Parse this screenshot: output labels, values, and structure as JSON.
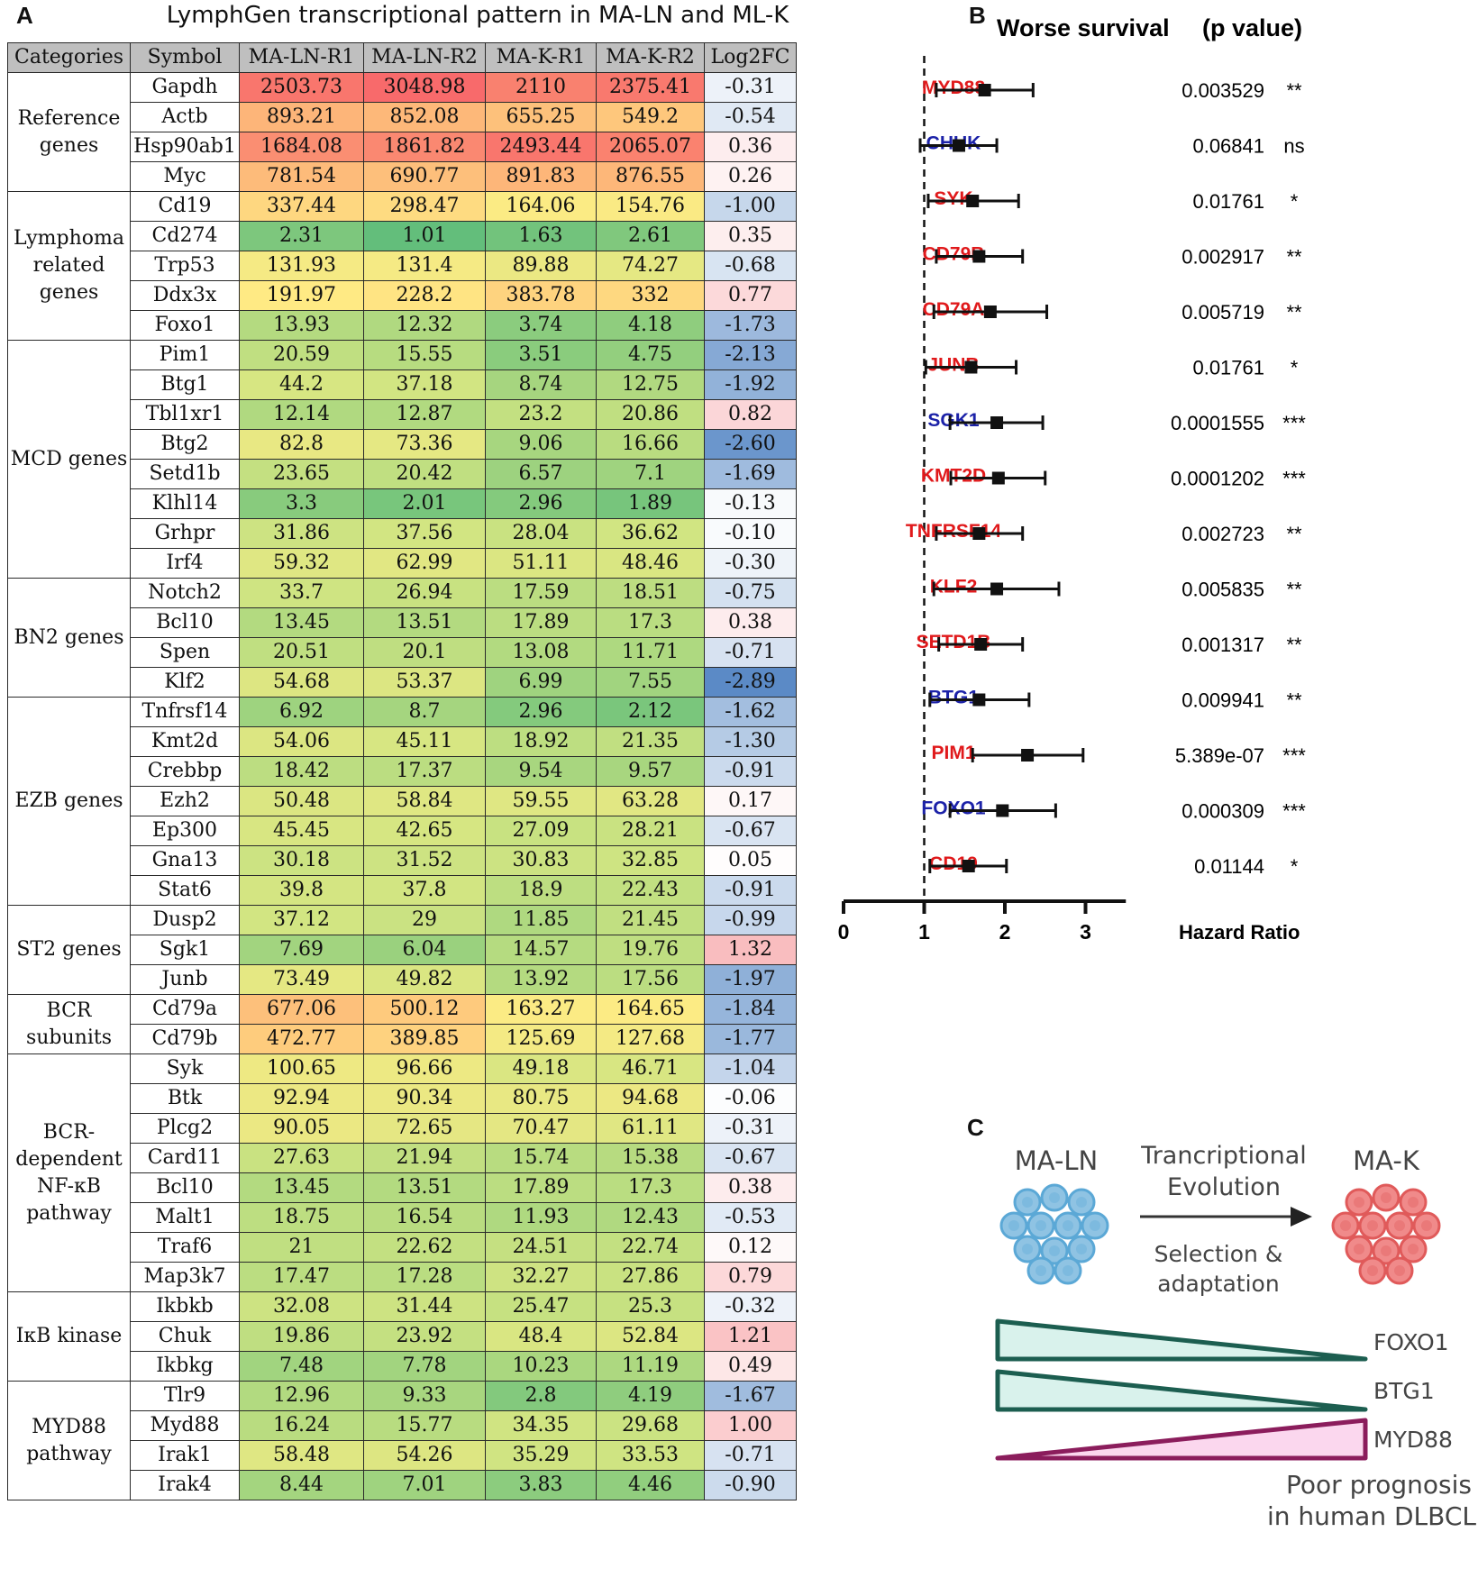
{
  "panel_a": {
    "letter": "A",
    "title": "LymphGen transcriptional pattern in MA-LN and ML-K",
    "headers": [
      "Categories",
      "Symbol",
      "MA-LN-R1",
      "MA-LN-R2",
      "MA-K-R1",
      "MA-K-R2",
      "Log2FC"
    ],
    "groups": [
      {
        "category": "Reference genes",
        "rows": [
          {
            "symbol": "Gapdh",
            "values": [
              "2503.73",
              "3048.98",
              "2110",
              "2375.41"
            ],
            "fc": "-0.31"
          },
          {
            "symbol": "Actb",
            "values": [
              "893.21",
              "852.08",
              "655.25",
              "549.2"
            ],
            "fc": "-0.54"
          },
          {
            "symbol": "Hsp90ab1",
            "values": [
              "1684.08",
              "1861.82",
              "2493.44",
              "2065.07"
            ],
            "fc": "0.36"
          },
          {
            "symbol": "Myc",
            "values": [
              "781.54",
              "690.77",
              "891.83",
              "876.55"
            ],
            "fc": "0.26"
          }
        ]
      },
      {
        "category": "Lymphoma related genes",
        "rows": [
          {
            "symbol": "Cd19",
            "values": [
              "337.44",
              "298.47",
              "164.06",
              "154.76"
            ],
            "fc": "-1.00"
          },
          {
            "symbol": "Cd274",
            "values": [
              "2.31",
              "1.01",
              "1.63",
              "2.61"
            ],
            "fc": "0.35"
          },
          {
            "symbol": "Trp53",
            "values": [
              "131.93",
              "131.4",
              "89.88",
              "74.27"
            ],
            "fc": "-0.68"
          },
          {
            "symbol": "Ddx3x",
            "values": [
              "191.97",
              "228.2",
              "383.78",
              "332"
            ],
            "fc": "0.77"
          },
          {
            "symbol": "Foxo1",
            "values": [
              "13.93",
              "12.32",
              "3.74",
              "4.18"
            ],
            "fc": "-1.73"
          }
        ]
      },
      {
        "category": "MCD genes",
        "rows": [
          {
            "symbol": "Pim1",
            "values": [
              "20.59",
              "15.55",
              "3.51",
              "4.75"
            ],
            "fc": "-2.13"
          },
          {
            "symbol": "Btg1",
            "values": [
              "44.2",
              "37.18",
              "8.74",
              "12.75"
            ],
            "fc": "-1.92"
          },
          {
            "symbol": "Tbl1xr1",
            "values": [
              "12.14",
              "12.87",
              "23.2",
              "20.86"
            ],
            "fc": "0.82"
          },
          {
            "symbol": "Btg2",
            "values": [
              "82.8",
              "73.36",
              "9.06",
              "16.66"
            ],
            "fc": "-2.60"
          },
          {
            "symbol": "Setd1b",
            "values": [
              "23.65",
              "20.42",
              "6.57",
              "7.1"
            ],
            "fc": "-1.69"
          },
          {
            "symbol": "Klhl14",
            "values": [
              "3.3",
              "2.01",
              "2.96",
              "1.89"
            ],
            "fc": "-0.13"
          },
          {
            "symbol": "Grhpr",
            "values": [
              "31.86",
              "37.56",
              "28.04",
              "36.62"
            ],
            "fc": "-0.10"
          },
          {
            "symbol": "Irf4",
            "values": [
              "59.32",
              "62.99",
              "51.11",
              "48.46"
            ],
            "fc": "-0.30"
          }
        ]
      },
      {
        "category": "BN2 genes",
        "rows": [
          {
            "symbol": "Notch2",
            "values": [
              "33.7",
              "26.94",
              "17.59",
              "18.51"
            ],
            "fc": "-0.75"
          },
          {
            "symbol": "Bcl10",
            "values": [
              "13.45",
              "13.51",
              "17.89",
              "17.3"
            ],
            "fc": "0.38"
          },
          {
            "symbol": "Spen",
            "values": [
              "20.51",
              "20.1",
              "13.08",
              "11.71"
            ],
            "fc": "-0.71"
          },
          {
            "symbol": "Klf2",
            "values": [
              "54.68",
              "53.37",
              "6.99",
              "7.55"
            ],
            "fc": "-2.89"
          }
        ]
      },
      {
        "category": "EZB genes",
        "rows": [
          {
            "symbol": "Tnfrsf14",
            "values": [
              "6.92",
              "8.7",
              "2.96",
              "2.12"
            ],
            "fc": "-1.62"
          },
          {
            "symbol": "Kmt2d",
            "values": [
              "54.06",
              "45.11",
              "18.92",
              "21.35"
            ],
            "fc": "-1.30"
          },
          {
            "symbol": "Crebbp",
            "values": [
              "18.42",
              "17.37",
              "9.54",
              "9.57"
            ],
            "fc": "-0.91"
          },
          {
            "symbol": "Ezh2",
            "values": [
              "50.48",
              "58.84",
              "59.55",
              "63.28"
            ],
            "fc": "0.17"
          },
          {
            "symbol": "Ep300",
            "values": [
              "45.45",
              "42.65",
              "27.09",
              "28.21"
            ],
            "fc": "-0.67"
          },
          {
            "symbol": "Gna13",
            "values": [
              "30.18",
              "31.52",
              "30.83",
              "32.85"
            ],
            "fc": "0.05"
          },
          {
            "symbol": "Stat6",
            "values": [
              "39.8",
              "37.8",
              "18.9",
              "22.43"
            ],
            "fc": "-0.91"
          }
        ]
      },
      {
        "category": "ST2 genes",
        "rows": [
          {
            "symbol": "Dusp2",
            "values": [
              "37.12",
              "29",
              "11.85",
              "21.45"
            ],
            "fc": "-0.99"
          },
          {
            "symbol": "Sgk1",
            "values": [
              "7.69",
              "6.04",
              "14.57",
              "19.76"
            ],
            "fc": "1.32"
          },
          {
            "symbol": "Junb",
            "values": [
              "73.49",
              "49.82",
              "13.92",
              "17.56"
            ],
            "fc": "-1.97"
          }
        ]
      },
      {
        "category": "BCR subunits",
        "rows": [
          {
            "symbol": "Cd79a",
            "values": [
              "677.06",
              "500.12",
              "163.27",
              "164.65"
            ],
            "fc": "-1.84"
          },
          {
            "symbol": "Cd79b",
            "values": [
              "472.77",
              "389.85",
              "125.69",
              "127.68"
            ],
            "fc": "-1.77"
          }
        ]
      },
      {
        "category": "BCR-dependent NF-κB pathway",
        "rows": [
          {
            "symbol": "Syk",
            "values": [
              "100.65",
              "96.66",
              "49.18",
              "46.71"
            ],
            "fc": "-1.04"
          },
          {
            "symbol": "Btk",
            "values": [
              "92.94",
              "90.34",
              "80.75",
              "94.68"
            ],
            "fc": "-0.06"
          },
          {
            "symbol": "Plcg2",
            "values": [
              "90.05",
              "72.65",
              "70.47",
              "61.11"
            ],
            "fc": "-0.31"
          },
          {
            "symbol": "Card11",
            "values": [
              "27.63",
              "21.94",
              "15.74",
              "15.38"
            ],
            "fc": "-0.67"
          },
          {
            "symbol": "Bcl10",
            "values": [
              "13.45",
              "13.51",
              "17.89",
              "17.3"
            ],
            "fc": "0.38"
          },
          {
            "symbol": "Malt1",
            "values": [
              "18.75",
              "16.54",
              "11.93",
              "12.43"
            ],
            "fc": "-0.53"
          },
          {
            "symbol": "Traf6",
            "values": [
              "21",
              "22.62",
              "24.51",
              "22.74"
            ],
            "fc": "0.12"
          },
          {
            "symbol": "Map3k7",
            "values": [
              "17.47",
              "17.28",
              "32.27",
              "27.86"
            ],
            "fc": "0.79"
          }
        ]
      },
      {
        "category": "IκB kinase",
        "rows": [
          {
            "symbol": "Ikbkb",
            "values": [
              "32.08",
              "31.44",
              "25.47",
              "25.3"
            ],
            "fc": "-0.32"
          },
          {
            "symbol": "Chuk",
            "values": [
              "19.86",
              "23.92",
              "48.4",
              "52.84"
            ],
            "fc": "1.21"
          },
          {
            "symbol": "Ikbkg",
            "values": [
              "7.48",
              "7.78",
              "10.23",
              "11.19"
            ],
            "fc": "0.49"
          }
        ]
      },
      {
        "category": "MYD88 pathway",
        "rows": [
          {
            "symbol": "Tlr9",
            "values": [
              "12.96",
              "9.33",
              "2.8",
              "4.19"
            ],
            "fc": "-1.67"
          },
          {
            "symbol": "Myd88",
            "values": [
              "16.24",
              "15.77",
              "34.35",
              "29.68"
            ],
            "fc": "1.00"
          },
          {
            "symbol": "Irak1",
            "values": [
              "58.48",
              "54.26",
              "35.29",
              "33.53"
            ],
            "fc": "-0.71"
          },
          {
            "symbol": "Irak4",
            "values": [
              "8.44",
              "7.01",
              "3.83",
              "4.46"
            ],
            "fc": "-0.90"
          }
        ]
      }
    ]
  },
  "chart_data": {
    "type": "forest",
    "letter": "B",
    "title": "Worse survival",
    "pvalue_header": "(p value)",
    "xlabel": "Hazard Ratio",
    "xticks": [
      "0",
      "1",
      "2",
      "3"
    ],
    "xlim": [
      0,
      3.5
    ],
    "reference_line": 1,
    "colors": {
      "red": "#e0191b",
      "blue": "#1c22a8"
    },
    "genes": [
      {
        "name": "MYD88",
        "color": "red",
        "hr": 1.75,
        "lo": 1.15,
        "hi": 2.35,
        "p": "0.003529",
        "sig": "**"
      },
      {
        "name": "CHUK",
        "color": "blue",
        "hr": 1.43,
        "lo": 0.95,
        "hi": 1.9,
        "p": "0.06841",
        "sig": "ns"
      },
      {
        "name": "SYK",
        "color": "red",
        "hr": 1.6,
        "lo": 1.05,
        "hi": 2.17,
        "p": "0.01761",
        "sig": "*"
      },
      {
        "name": "CD79B",
        "color": "red",
        "hr": 1.68,
        "lo": 1.15,
        "hi": 2.22,
        "p": "0.002917",
        "sig": "**"
      },
      {
        "name": "CD79A",
        "color": "red",
        "hr": 1.82,
        "lo": 1.12,
        "hi": 2.52,
        "p": "0.005719",
        "sig": "**"
      },
      {
        "name": "JUNB",
        "color": "red",
        "hr": 1.58,
        "lo": 1.02,
        "hi": 2.14,
        "p": "0.01761",
        "sig": "*"
      },
      {
        "name": "SGK1",
        "color": "blue",
        "hr": 1.9,
        "lo": 1.32,
        "hi": 2.47,
        "p": "0.0001555",
        "sig": "***"
      },
      {
        "name": "KMT2D",
        "color": "red",
        "hr": 1.92,
        "lo": 1.33,
        "hi": 2.5,
        "p": "0.0001202",
        "sig": "***"
      },
      {
        "name": "TNFRSF14",
        "color": "red",
        "hr": 1.68,
        "lo": 1.15,
        "hi": 2.22,
        "p": "0.002723",
        "sig": "**"
      },
      {
        "name": "KLF2",
        "color": "red",
        "hr": 1.9,
        "lo": 1.12,
        "hi": 2.67,
        "p": "0.005835",
        "sig": "**"
      },
      {
        "name": "SETD1B",
        "color": "red",
        "hr": 1.7,
        "lo": 1.18,
        "hi": 2.22,
        "p": "0.001317",
        "sig": "**"
      },
      {
        "name": "BTG1",
        "color": "blue",
        "hr": 1.68,
        "lo": 1.07,
        "hi": 2.3,
        "p": "0.009941",
        "sig": "**"
      },
      {
        "name": "PIM1",
        "color": "red",
        "hr": 2.28,
        "lo": 1.6,
        "hi": 2.97,
        "p": "5.389e-07",
        "sig": "***"
      },
      {
        "name": "FOXO1",
        "color": "blue",
        "hr": 1.97,
        "lo": 1.32,
        "hi": 2.63,
        "p": "0.000309",
        "sig": "***"
      },
      {
        "name": "CD19",
        "color": "red",
        "hr": 1.55,
        "lo": 1.07,
        "hi": 2.02,
        "p": "0.01144",
        "sig": "*"
      }
    ]
  },
  "panel_c": {
    "letter": "C",
    "left_label": "MA-LN",
    "right_label": "MA-K",
    "arrow_top_1": "Trancriptional",
    "arrow_top_2": "Evolution",
    "arrow_bottom_1": "Selection &",
    "arrow_bottom_2": "adaptation",
    "bars": [
      "FOXO1",
      "BTG1",
      "MYD88"
    ],
    "footer_1": "Poor prognosis",
    "footer_2": "in human DLBCL",
    "colors": {
      "ln_cell": "#8fc3e3",
      "k_cell": "#f08a8a",
      "decrease_fill": "#d9f2ec",
      "decrease_stroke": "#1c5e50",
      "increase_fill": "#fbd7ee",
      "increase_stroke": "#8b1d5c"
    }
  }
}
